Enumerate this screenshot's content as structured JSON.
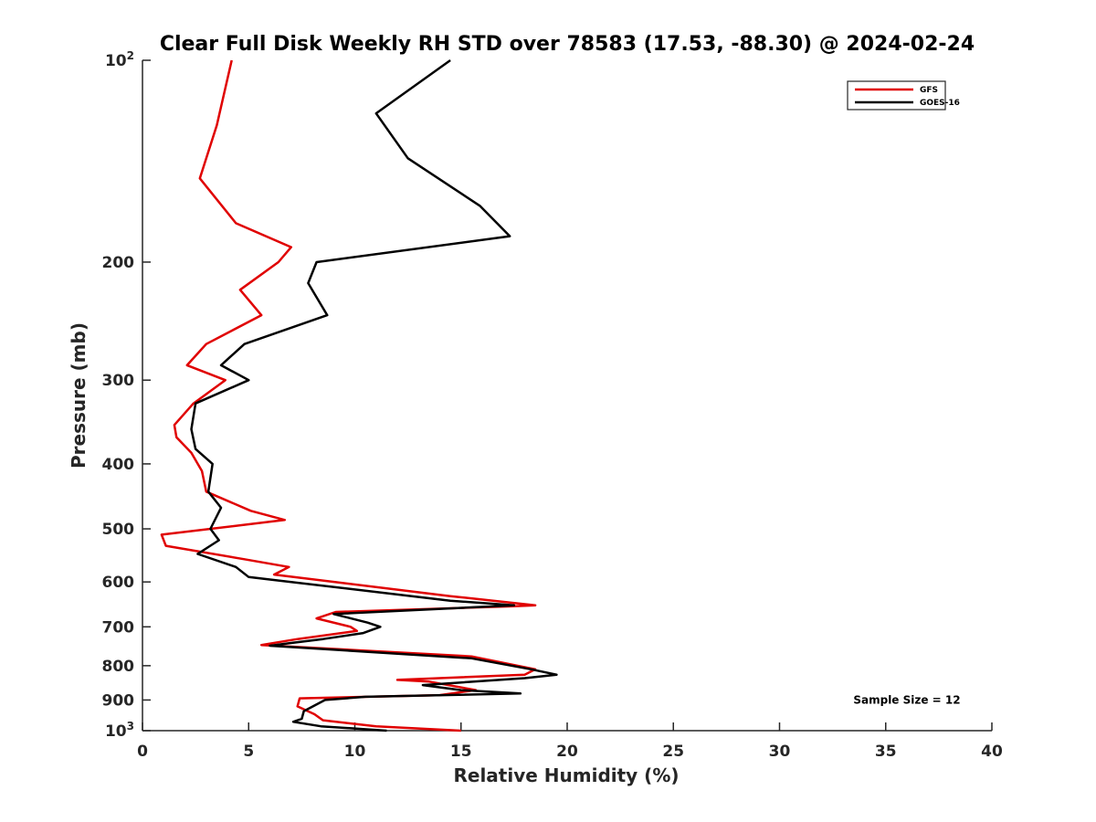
{
  "chart_data": {
    "type": "line",
    "title": "Clear Full Disk Weekly RH STD over 78583 (17.53, -88.30) @ 2024-02-24",
    "xlabel": "Relative Humidity (%)",
    "ylabel": "Pressure (mb)",
    "xlim": [
      0,
      40
    ],
    "ylim": [
      100,
      1000
    ],
    "yscale": "log",
    "y_reversed": true,
    "grid": false,
    "legend_location": "top-right",
    "x_ticks": [
      0,
      5,
      10,
      15,
      20,
      25,
      30,
      35,
      40
    ],
    "y_ticks": [
      {
        "value": 100,
        "base": "10",
        "exp": "2"
      },
      {
        "value": 200,
        "label": "200"
      },
      {
        "value": 300,
        "label": "300"
      },
      {
        "value": 400,
        "label": "400"
      },
      {
        "value": 500,
        "label": "500"
      },
      {
        "value": 600,
        "label": "600"
      },
      {
        "value": 700,
        "label": "700"
      },
      {
        "value": 800,
        "label": "800"
      },
      {
        "value": 900,
        "label": "900"
      },
      {
        "value": 1000,
        "base": "10",
        "exp": "3"
      }
    ],
    "series": [
      {
        "name": "GFS",
        "color": "#e00000",
        "points": [
          [
            4.2,
            100
          ],
          [
            3.5,
            125
          ],
          [
            2.7,
            150
          ],
          [
            4.4,
            175
          ],
          [
            7.0,
            190
          ],
          [
            6.4,
            200
          ],
          [
            4.6,
            220
          ],
          [
            5.6,
            240
          ],
          [
            3.0,
            265
          ],
          [
            2.1,
            285
          ],
          [
            3.9,
            300
          ],
          [
            2.4,
            325
          ],
          [
            1.5,
            350
          ],
          [
            1.6,
            365
          ],
          [
            2.3,
            385
          ],
          [
            2.8,
            410
          ],
          [
            3.0,
            440
          ],
          [
            5.1,
            470
          ],
          [
            6.7,
            485
          ],
          [
            0.9,
            510
          ],
          [
            1.1,
            530
          ],
          [
            4.8,
            555
          ],
          [
            6.9,
            570
          ],
          [
            6.2,
            585
          ],
          [
            14.5,
            630
          ],
          [
            18.5,
            650
          ],
          [
            17.5,
            652
          ],
          [
            9.1,
            665
          ],
          [
            8.2,
            680
          ],
          [
            9.8,
            700
          ],
          [
            10.1,
            710
          ],
          [
            7.3,
            730
          ],
          [
            5.6,
            745
          ],
          [
            15.5,
            775
          ],
          [
            18.5,
            810
          ],
          [
            18.0,
            825
          ],
          [
            12.0,
            840
          ],
          [
            13.5,
            845
          ],
          [
            15.7,
            870
          ],
          [
            14.0,
            885
          ],
          [
            7.4,
            895
          ],
          [
            7.3,
            920
          ],
          [
            8.1,
            945
          ],
          [
            8.5,
            965
          ],
          [
            11.0,
            985
          ],
          [
            15.0,
            1000
          ]
        ]
      },
      {
        "name": "GOES-16",
        "color": "#000000",
        "points": [
          [
            14.5,
            100
          ],
          [
            11.0,
            120
          ],
          [
            12.5,
            140
          ],
          [
            15.9,
            165
          ],
          [
            17.3,
            183
          ],
          [
            8.2,
            200
          ],
          [
            7.8,
            215
          ],
          [
            8.7,
            240
          ],
          [
            4.8,
            265
          ],
          [
            3.7,
            285
          ],
          [
            5.0,
            300
          ],
          [
            2.5,
            325
          ],
          [
            2.3,
            355
          ],
          [
            2.5,
            380
          ],
          [
            3.3,
            400
          ],
          [
            3.1,
            440
          ],
          [
            3.7,
            465
          ],
          [
            3.2,
            500
          ],
          [
            3.6,
            520
          ],
          [
            2.6,
            545
          ],
          [
            4.4,
            570
          ],
          [
            5.0,
            590
          ],
          [
            14.5,
            640
          ],
          [
            17.5,
            650
          ],
          [
            9.0,
            670
          ],
          [
            10.6,
            690
          ],
          [
            11.2,
            700
          ],
          [
            10.4,
            715
          ],
          [
            8.5,
            730
          ],
          [
            7.0,
            740
          ],
          [
            6.0,
            747
          ],
          [
            15.5,
            780
          ],
          [
            18.3,
            810
          ],
          [
            19.5,
            825
          ],
          [
            18.0,
            835
          ],
          [
            13.2,
            855
          ],
          [
            15.0,
            870
          ],
          [
            17.8,
            880
          ],
          [
            10.5,
            890
          ],
          [
            8.6,
            900
          ],
          [
            7.6,
            935
          ],
          [
            7.5,
            960
          ],
          [
            7.1,
            970
          ],
          [
            8.4,
            985
          ],
          [
            11.5,
            1000
          ]
        ]
      }
    ],
    "annotations": [
      {
        "text": "Sample Size = 12",
        "x": 36,
        "y": 900
      }
    ]
  }
}
